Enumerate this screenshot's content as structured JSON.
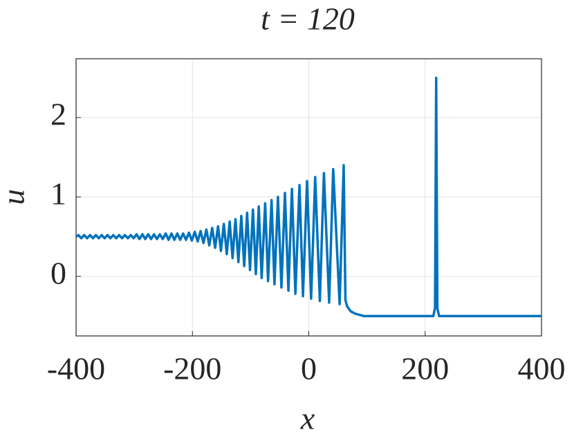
{
  "chart_data": {
    "type": "line",
    "title": "t = 120",
    "xlabel": "x",
    "ylabel": "u",
    "xlim": [
      -400,
      400
    ],
    "ylim": [
      -0.75,
      2.74
    ],
    "xticks": [
      -400,
      -200,
      0,
      200,
      400
    ],
    "yticks": [
      0,
      1,
      2
    ],
    "grid": true,
    "series": [
      {
        "color": "#0072BD",
        "x": [
          -400,
          -396,
          -391,
          -386,
          -381,
          -376,
          -371,
          -366,
          -361,
          -356,
          -351,
          -346,
          -341,
          -336,
          -331,
          -326,
          -321,
          -316,
          -311,
          -306,
          -301,
          -296,
          -291,
          -286,
          -281,
          -276,
          -271,
          -266,
          -261,
          -256,
          -251,
          -246,
          -241,
          -236,
          -231,
          -226,
          -221,
          -216,
          -211,
          -206,
          -201,
          -196,
          -191,
          -186,
          -181,
          -176,
          -171,
          -166,
          -161,
          -156,
          -151,
          -146,
          -141,
          -136,
          -131,
          -126,
          -121,
          -116,
          -111,
          -106,
          -101,
          -96,
          -91,
          -86,
          -81,
          -75,
          -70,
          -64,
          -59,
          -53,
          -47,
          -41,
          -35,
          -29,
          -23,
          -16,
          -10,
          -3,
          4,
          11,
          19,
          26,
          35,
          42,
          53,
          60,
          63,
          66,
          72,
          80,
          95,
          214,
          217,
          219,
          221,
          224,
          400
        ],
        "values": [
          0.5,
          0.52,
          0.48,
          0.52,
          0.48,
          0.52,
          0.48,
          0.52,
          0.48,
          0.52,
          0.48,
          0.52,
          0.48,
          0.52,
          0.48,
          0.52,
          0.48,
          0.52,
          0.48,
          0.52,
          0.48,
          0.53,
          0.47,
          0.53,
          0.47,
          0.53,
          0.47,
          0.53,
          0.47,
          0.53,
          0.47,
          0.54,
          0.46,
          0.54,
          0.46,
          0.54,
          0.46,
          0.54,
          0.46,
          0.55,
          0.45,
          0.56,
          0.44,
          0.57,
          0.42,
          0.59,
          0.39,
          0.61,
          0.36,
          0.63,
          0.32,
          0.66,
          0.28,
          0.69,
          0.23,
          0.72,
          0.18,
          0.76,
          0.13,
          0.8,
          0.08,
          0.84,
          0.03,
          0.88,
          -0.02,
          0.92,
          -0.06,
          0.96,
          -0.1,
          1.0,
          -0.14,
          1.05,
          -0.18,
          1.1,
          -0.22,
          1.15,
          -0.25,
          1.2,
          -0.28,
          1.25,
          -0.31,
          1.3,
          -0.33,
          1.35,
          -0.35,
          1.4,
          -0.3,
          -0.38,
          -0.44,
          -0.47,
          -0.5,
          -0.5,
          -0.4,
          2.5,
          -0.4,
          -0.5,
          -0.5
        ]
      }
    ]
  }
}
